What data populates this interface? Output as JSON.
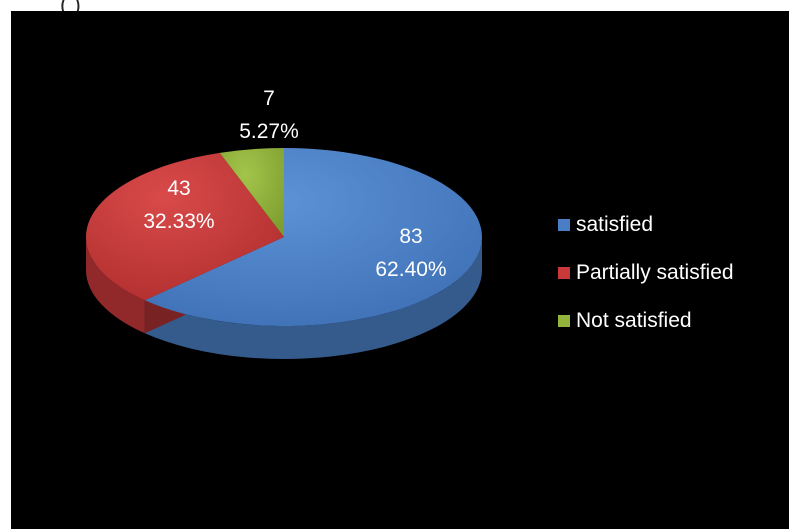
{
  "header_fragment": "(       )",
  "chart_data": {
    "type": "pie",
    "title": "",
    "categories": [
      "satisfied",
      "Partially satisfied",
      "Not satisfied"
    ],
    "values": [
      83,
      43,
      7
    ],
    "percent_labels": [
      "62.40%",
      "32.33%",
      "5.27%"
    ],
    "value_labels": [
      "83",
      "43",
      "7"
    ],
    "colors": [
      "#4a7ec4",
      "#c9393a",
      "#93b43a"
    ],
    "legend_position": "right",
    "three_d": true
  },
  "legend": {
    "items": [
      {
        "label": "satisfied",
        "color": "#4a7ec4"
      },
      {
        "label": "Partially satisfied",
        "color": "#c9393a"
      },
      {
        "label": "Not satisfied",
        "color": "#93b43a"
      }
    ]
  }
}
